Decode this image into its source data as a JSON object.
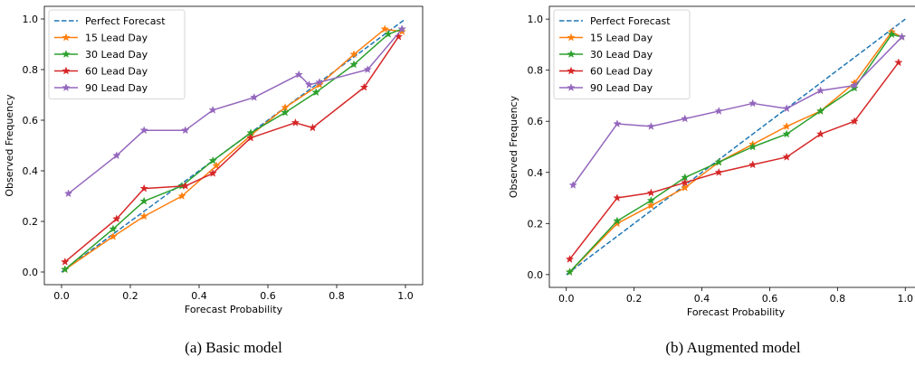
{
  "figure": {
    "captions": [
      "(a) Basic model",
      "(b) Augmented model"
    ]
  },
  "chart_data": [
    {
      "type": "line",
      "xlabel": "Forecast Probability",
      "ylabel": "Observed Frequency",
      "xlim": [
        -0.05,
        1.05
      ],
      "ylim": [
        -0.05,
        1.05
      ],
      "xticks": [
        0.0,
        0.2,
        0.4,
        0.6,
        0.8,
        1.0
      ],
      "yticks": [
        0.0,
        0.2,
        0.4,
        0.6,
        0.8,
        1.0
      ],
      "xtick_labels": [
        "0.0",
        "0.2",
        "0.4",
        "0.6",
        "0.8",
        "1.0"
      ],
      "ytick_labels": [
        "0.0",
        "0.2",
        "0.4",
        "0.6",
        "0.8",
        "1.0"
      ],
      "grid": false,
      "legend_position": "top-left",
      "series": [
        {
          "name": "Perfect Forecast",
          "color": "#1f77b4",
          "style": "dashed",
          "marker": "none",
          "x": [
            0,
            1
          ],
          "y": [
            0,
            1
          ]
        },
        {
          "name": "15 Lead Day",
          "color": "#ff7f0e",
          "style": "solid",
          "marker": "star",
          "x": [
            0.01,
            0.15,
            0.24,
            0.35,
            0.45,
            0.55,
            0.65,
            0.75,
            0.85,
            0.94,
            0.99
          ],
          "y": [
            0.01,
            0.14,
            0.22,
            0.3,
            0.42,
            0.54,
            0.65,
            0.74,
            0.86,
            0.96,
            0.95
          ]
        },
        {
          "name": "30 Lead Day",
          "color": "#2ca02c",
          "style": "solid",
          "marker": "star",
          "x": [
            0.01,
            0.15,
            0.24,
            0.35,
            0.44,
            0.55,
            0.65,
            0.74,
            0.85,
            0.95,
            0.99
          ],
          "y": [
            0.01,
            0.17,
            0.28,
            0.34,
            0.44,
            0.55,
            0.63,
            0.71,
            0.82,
            0.94,
            0.96
          ]
        },
        {
          "name": "60 Lead Day",
          "color": "#d62728",
          "style": "solid",
          "marker": "star",
          "x": [
            0.01,
            0.16,
            0.24,
            0.36,
            0.44,
            0.55,
            0.68,
            0.73,
            0.88,
            0.98
          ],
          "y": [
            0.04,
            0.21,
            0.33,
            0.34,
            0.39,
            0.53,
            0.59,
            0.57,
            0.73,
            0.93
          ]
        },
        {
          "name": "90 Lead Day",
          "color": "#9467bd",
          "style": "solid",
          "marker": "star",
          "x": [
            0.02,
            0.16,
            0.24,
            0.36,
            0.44,
            0.56,
            0.69,
            0.72,
            0.75,
            0.89,
            0.99
          ],
          "y": [
            0.31,
            0.46,
            0.56,
            0.56,
            0.64,
            0.69,
            0.78,
            0.74,
            0.75,
            0.8,
            0.96
          ]
        }
      ]
    },
    {
      "type": "line",
      "xlabel": "Forecast Probability",
      "ylabel": "Observed Frequency",
      "xlim": [
        -0.05,
        1.05
      ],
      "ylim": [
        -0.05,
        1.05
      ],
      "xticks": [
        0.0,
        0.2,
        0.4,
        0.6,
        0.8,
        1.0
      ],
      "yticks": [
        0.0,
        0.2,
        0.4,
        0.6,
        0.8,
        1.0
      ],
      "xtick_labels": [
        "0.0",
        "0.2",
        "0.4",
        "0.6",
        "0.8",
        "1.0"
      ],
      "ytick_labels": [
        "0.0",
        "0.2",
        "0.4",
        "0.6",
        "0.8",
        "1.0"
      ],
      "grid": false,
      "legend_position": "top-left",
      "series": [
        {
          "name": "Perfect Forecast",
          "color": "#1f77b4",
          "style": "dashed",
          "marker": "none",
          "x": [
            0,
            1
          ],
          "y": [
            0,
            1
          ]
        },
        {
          "name": "15 Lead Day",
          "color": "#ff7f0e",
          "style": "solid",
          "marker": "star",
          "x": [
            0.01,
            0.15,
            0.25,
            0.35,
            0.45,
            0.55,
            0.65,
            0.75,
            0.85,
            0.96,
            0.99
          ],
          "y": [
            0.01,
            0.2,
            0.27,
            0.34,
            0.44,
            0.51,
            0.58,
            0.64,
            0.75,
            0.95,
            0.93
          ]
        },
        {
          "name": "30 Lead Day",
          "color": "#2ca02c",
          "style": "solid",
          "marker": "star",
          "x": [
            0.01,
            0.15,
            0.25,
            0.35,
            0.45,
            0.55,
            0.65,
            0.75,
            0.85,
            0.96,
            0.99
          ],
          "y": [
            0.01,
            0.21,
            0.29,
            0.38,
            0.44,
            0.5,
            0.55,
            0.64,
            0.73,
            0.94,
            0.93
          ]
        },
        {
          "name": "60 Lead Day",
          "color": "#d62728",
          "style": "solid",
          "marker": "star",
          "x": [
            0.01,
            0.15,
            0.25,
            0.35,
            0.45,
            0.55,
            0.65,
            0.75,
            0.85,
            0.98
          ],
          "y": [
            0.06,
            0.3,
            0.32,
            0.36,
            0.4,
            0.43,
            0.46,
            0.55,
            0.6,
            0.83
          ]
        },
        {
          "name": "90 Lead Day",
          "color": "#9467bd",
          "style": "solid",
          "marker": "star",
          "x": [
            0.02,
            0.15,
            0.25,
            0.35,
            0.45,
            0.55,
            0.65,
            0.75,
            0.85,
            0.99
          ],
          "y": [
            0.35,
            0.59,
            0.58,
            0.61,
            0.64,
            0.67,
            0.65,
            0.72,
            0.74,
            0.93
          ]
        }
      ]
    }
  ]
}
